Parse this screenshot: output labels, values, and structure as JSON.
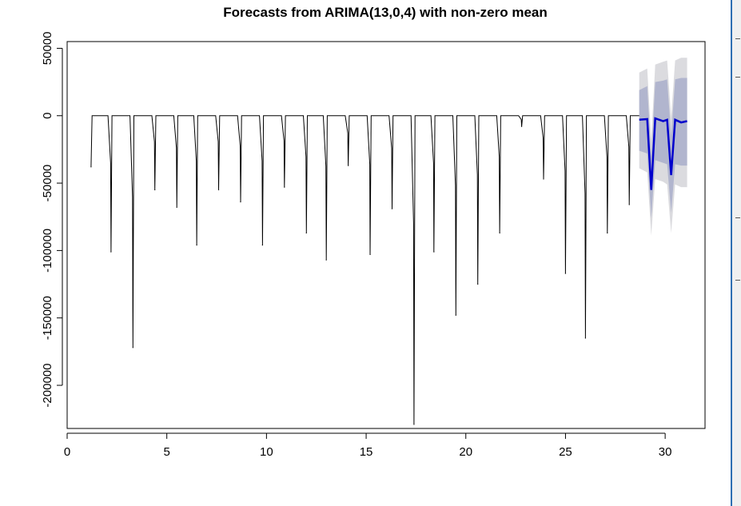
{
  "chart_data": {
    "type": "line",
    "title": "Forecasts from ARIMA(13,0,4) with non-zero mean",
    "xlabel": "",
    "ylabel": "",
    "xlim": [
      0,
      32
    ],
    "ylim": [
      -232000,
      55000
    ],
    "x_ticks": [
      0,
      5,
      10,
      15,
      20,
      25,
      30
    ],
    "y_ticks": [
      50000,
      0,
      -50000,
      -100000,
      -150000,
      -200000
    ],
    "y_tick_labels": [
      "50000",
      "0",
      "-50000",
      "-100000",
      "-150000",
      "-200000"
    ],
    "grid": false,
    "legend": "none",
    "colors": {
      "observed": "#000000",
      "forecast_mean": "#0000cc",
      "interval_80": "#b1b5ce",
      "interval_95": "#dbdbdf"
    },
    "observed_series": {
      "baseline": 0,
      "dips": [
        {
          "x": 1.2,
          "y": -38000
        },
        {
          "x": 2.2,
          "y": -101000
        },
        {
          "x": 3.3,
          "y": -172000
        },
        {
          "x": 4.4,
          "y": -55000
        },
        {
          "x": 5.5,
          "y": -68000
        },
        {
          "x": 6.5,
          "y": -96000
        },
        {
          "x": 7.6,
          "y": -55000
        },
        {
          "x": 8.7,
          "y": -64000
        },
        {
          "x": 9.8,
          "y": -96000
        },
        {
          "x": 10.9,
          "y": -53000
        },
        {
          "x": 12.0,
          "y": -87000
        },
        {
          "x": 13.0,
          "y": -107000
        },
        {
          "x": 14.1,
          "y": -37000
        },
        {
          "x": 15.2,
          "y": -103000
        },
        {
          "x": 16.3,
          "y": -69000
        },
        {
          "x": 17.4,
          "y": -229000
        },
        {
          "x": 18.4,
          "y": -101000
        },
        {
          "x": 19.5,
          "y": -148000
        },
        {
          "x": 20.6,
          "y": -125000
        },
        {
          "x": 21.7,
          "y": -87000
        },
        {
          "x": 22.8,
          "y": -8000
        },
        {
          "x": 23.9,
          "y": -47000
        },
        {
          "x": 25.0,
          "y": -117000
        },
        {
          "x": 26.0,
          "y": -165000
        },
        {
          "x": 27.1,
          "y": -87000
        },
        {
          "x": 28.2,
          "y": -66000
        }
      ]
    },
    "forecast_series": {
      "x_start": 28.7,
      "x_end": 31.1,
      "mean": [
        {
          "x": 28.7,
          "y": -3000
        },
        {
          "x": 29.1,
          "y": -2500
        },
        {
          "x": 29.3,
          "y": -55000
        },
        {
          "x": 29.5,
          "y": -2000
        },
        {
          "x": 29.9,
          "y": -4000
        },
        {
          "x": 30.1,
          "y": -3000
        },
        {
          "x": 30.3,
          "y": -44000
        },
        {
          "x": 30.5,
          "y": -3000
        },
        {
          "x": 30.8,
          "y": -5000
        },
        {
          "x": 31.1,
          "y": -4000
        }
      ],
      "lo80": [
        {
          "x": 28.7,
          "y": -26000
        },
        {
          "x": 29.1,
          "y": -28000
        },
        {
          "x": 29.3,
          "y": -76000
        },
        {
          "x": 29.5,
          "y": -33000
        },
        {
          "x": 29.9,
          "y": -35000
        },
        {
          "x": 30.1,
          "y": -36000
        },
        {
          "x": 30.3,
          "y": -72000
        },
        {
          "x": 30.5,
          "y": -36000
        },
        {
          "x": 30.8,
          "y": -37000
        },
        {
          "x": 31.1,
          "y": -37000
        }
      ],
      "hi80": [
        {
          "x": 28.7,
          "y": 19000
        },
        {
          "x": 29.1,
          "y": 22000
        },
        {
          "x": 29.3,
          "y": -30000
        },
        {
          "x": 29.5,
          "y": 25000
        },
        {
          "x": 29.9,
          "y": 26000
        },
        {
          "x": 30.1,
          "y": 27000
        },
        {
          "x": 30.3,
          "y": -15000
        },
        {
          "x": 30.5,
          "y": 27000
        },
        {
          "x": 30.8,
          "y": 28000
        },
        {
          "x": 31.1,
          "y": 28000
        }
      ],
      "lo95": [
        {
          "x": 28.7,
          "y": -39000
        },
        {
          "x": 29.1,
          "y": -42000
        },
        {
          "x": 29.3,
          "y": -89000
        },
        {
          "x": 29.5,
          "y": -47000
        },
        {
          "x": 29.9,
          "y": -49000
        },
        {
          "x": 30.1,
          "y": -51000
        },
        {
          "x": 30.3,
          "y": -87000
        },
        {
          "x": 30.5,
          "y": -51000
        },
        {
          "x": 30.8,
          "y": -53000
        },
        {
          "x": 31.1,
          "y": -53000
        }
      ],
      "hi95": [
        {
          "x": 28.7,
          "y": 32000
        },
        {
          "x": 29.1,
          "y": 35000
        },
        {
          "x": 29.3,
          "y": -18000
        },
        {
          "x": 29.5,
          "y": 38000
        },
        {
          "x": 29.9,
          "y": 40000
        },
        {
          "x": 30.1,
          "y": 41000
        },
        {
          "x": 30.3,
          "y": -1000
        },
        {
          "x": 30.5,
          "y": 41000
        },
        {
          "x": 30.8,
          "y": 43000
        },
        {
          "x": 31.1,
          "y": 43000
        }
      ]
    }
  }
}
